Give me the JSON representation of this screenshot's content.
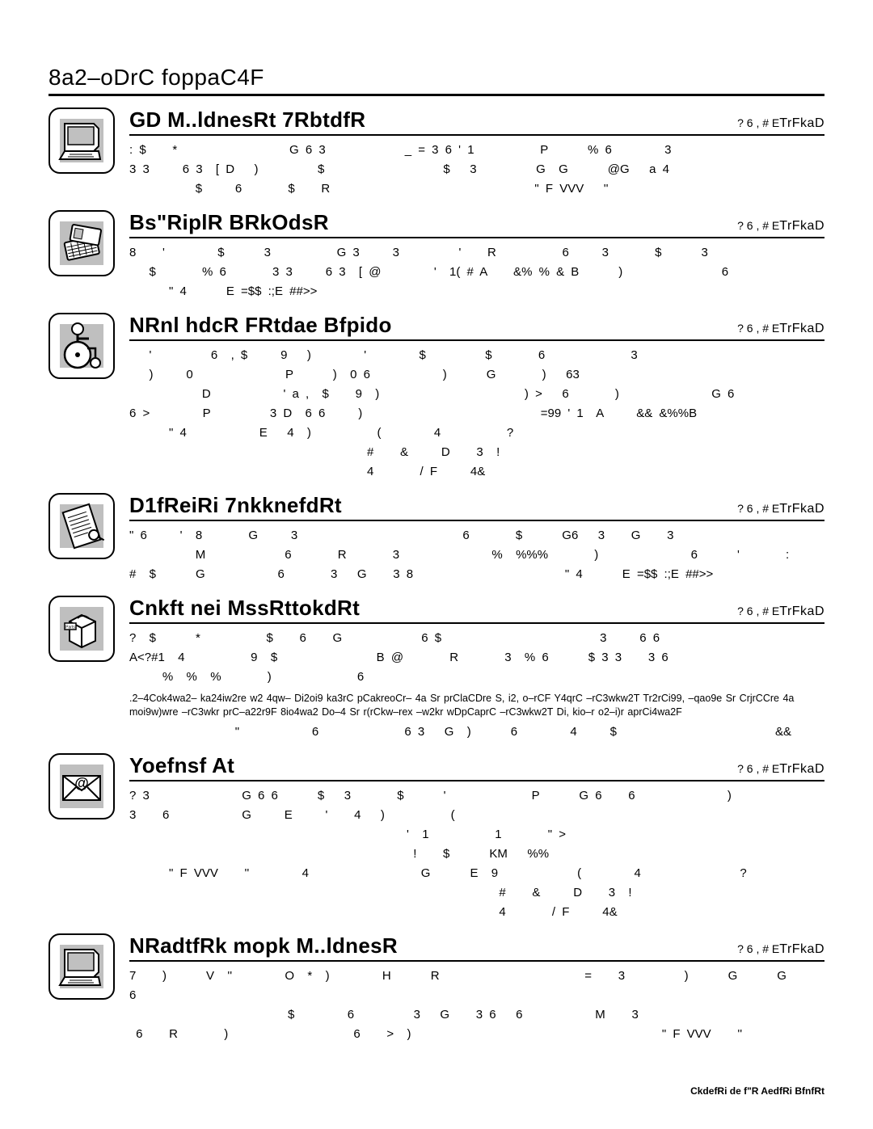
{
  "page": {
    "title": "8a2–oDrC foppaC4F",
    "footer": "CkdefRi de f\"R AedfRi BfnfRt",
    "link_label": "? 6 , # E",
    "link_label_big": "TrFkaD"
  },
  "sections": [
    {
      "id": "s1",
      "icon": "laptop",
      "title": "GD M..ldnesRt 7RbtdfR",
      "text": ": $    *                 G 6 3            _ = 3 6 ' 1          P      % 6        3\n3 3     6 3  [ D   )         $                  $   3         G  G      @G   a 4\n          $     6       $    R                               \" F VVV   ''"
    },
    {
      "id": "s2",
      "icon": "tickets",
      "title": "Bs\"RiplR BRkOdsR",
      "text": "8    '        $      3          G 3     3         '    R          6     3       $      3\n   $       % 6       3 3     6 3  [ @        '  1( # A    &% % & B      )               6\n      \" 4      E =$$ :;E ##>>"
    },
    {
      "id": "s3",
      "icon": "wheelchair",
      "title": "NRnl hdcR FRtdae Bfpido",
      "text": "   '         6  , $     9   )        '        $         $       6             3\n   )     0              P      )  0 6           )      G       )   63\n           D           ' a ,  $    9  )                      ) >   6       )              G 6\n6 >        P         3 D  6 6     )                           =99 ' 1  A     && &%%B\n      \" 4           E   4  )          (        4          ?\n                                    #    &     D    3  !\n                                    4       / F     4&"
    },
    {
      "id": "s4",
      "icon": "document",
      "title": "D1fReiRi 7nkknefdRt",
      "text": "\" 6     '  8       G     3                         6       $      G6   3    G    3\n          M            6       R       3              %  %%%       )              6      '       :\n#  $      G           6       3   G    3 8                       \" 4      E =$$ :;E ##>>"
    },
    {
      "id": "s5",
      "icon": "parts",
      "title": "Cnkft nei MssRttokdRt",
      "text": "?  $      *          $    6    G            6 $                        3     6 6\nA<?#1  4          9  $               B @       R       3  % 6      $ 3 3    3 6\n     %  %  %       )             6",
      "fine": ".2–4Cok4wa2– ka24iw2re w2 4qw– Di2oi9 ka3rC pCakreoCr– 4a Sr prClaCDre S, i2, o–rCF Y4qrC –rC3wkw2T Tr2rCi99, –qao9e Sr CrjrCCre 4a moi9w)wre –rC3wkr prC–a22r9F 8io4wa2 Do–4 Sr r(rCkw–rex –w2kr wDpCaprC –rC3wkw2T Di, kio–r o2–i)r aprCi4wa2F",
      "text2": "                \"           6             6 3   G  )      6        4     $                        &&"
    },
    {
      "id": "s6",
      "icon": "envelope",
      "title": "Yoefnsf At",
      "text": "? 3              G 6 6      $   3       $      '             P      G 6    6              )\n3    6           G     E     '    4   )          (\n                                          '  1          1       \" >\n                                           !    $      KM   %%\n      \" F VVV    ''        4                 G      E  9            (        4               ?\n                                                        #    &     D    3  !\n                                                        4       / F     4&"
    },
    {
      "id": "s7",
      "icon": "laptop",
      "title": "NRadtfRk mopk M..ldnesR",
      "text": "7    )      V  ''        O  *  )        H      R                      =    3         )      G      G       6\n                        $        6         3   G    3 6   6           M    3\n 6    R       )                   6    >  )                                      \" F VVV    ''"
    }
  ]
}
